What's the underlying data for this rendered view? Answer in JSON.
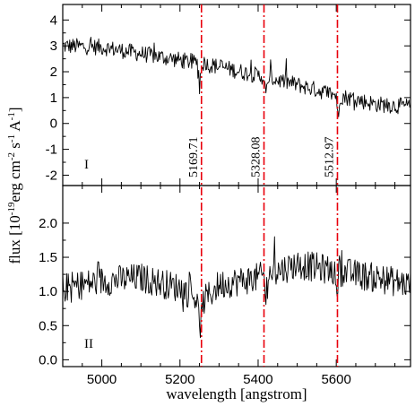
{
  "chart_data": {
    "type": "line",
    "xlabel": "wavelength [angstrom]",
    "ylabel": "flux [10",
    "ylabel_exp1": "-19",
    "ylabel_mid1": "erg cm",
    "ylabel_exp2": "-2",
    "ylabel_mid2": " s",
    "ylabel_exp3": "-1",
    "ylabel_mid3": " A",
    "ylabel_exp4": "-1",
    "ylabel_end": "]",
    "xlim": [
      4900,
      5790
    ],
    "x_ticks": [
      5000,
      5200,
      5400,
      5600
    ],
    "x_tick_labels": [
      "5000",
      "5200",
      "5400",
      "5600"
    ],
    "reference_lines": [
      {
        "label": "5169.71",
        "x": 5255
      },
      {
        "label": "5328.08",
        "x": 5415
      },
      {
        "label": "5512.97",
        "x": 5603
      }
    ],
    "reference_color": "#e8000b",
    "panels": [
      {
        "label": "I",
        "ylim": [
          -2.4,
          4.6
        ],
        "y_ticks": [
          -2,
          -1,
          0,
          1,
          2,
          3,
          4
        ],
        "y_tick_labels": [
          "-2",
          "-1",
          "0",
          "1",
          "2",
          "3",
          "4"
        ],
        "series": {
          "x_start": 4900,
          "x_end": 5790,
          "step": 2,
          "trend": [
            [
              4900,
              3.0
            ],
            [
              5000,
              2.95
            ],
            [
              5100,
              2.7
            ],
            [
              5200,
              2.45
            ],
            [
              5300,
              2.2
            ],
            [
              5400,
              1.85
            ],
            [
              5500,
              1.5
            ],
            [
              5600,
              1.1
            ],
            [
              5700,
              0.75
            ],
            [
              5790,
              0.65
            ]
          ],
          "noise": 0.32,
          "dips": [
            [
              5250,
              1.0,
              6
            ],
            [
              5420,
              0.8,
              5
            ],
            [
              5605,
              1.2,
              5
            ]
          ]
        }
      },
      {
        "label": "II",
        "ylim": [
          -0.1,
          2.55
        ],
        "y_ticks": [
          0.0,
          0.5,
          1.0,
          1.5,
          2.0
        ],
        "y_tick_labels": [
          "0.0",
          "0.5",
          "1.0",
          "1.5",
          "2.0"
        ],
        "series": {
          "x_start": 4900,
          "x_end": 5790,
          "step": 2,
          "trend": [
            [
              4900,
              1.05
            ],
            [
              5000,
              1.15
            ],
            [
              5100,
              1.2
            ],
            [
              5200,
              1.05
            ],
            [
              5260,
              0.85
            ],
            [
              5300,
              1.1
            ],
            [
              5400,
              1.2
            ],
            [
              5500,
              1.4
            ],
            [
              5600,
              1.3
            ],
            [
              5700,
              1.2
            ],
            [
              5790,
              1.1
            ]
          ],
          "noise": 0.22,
          "dips": [
            [
              5250,
              0.45,
              6
            ],
            [
              5420,
              0.35,
              5
            ],
            [
              5600,
              0.55,
              5
            ]
          ]
        }
      }
    ]
  }
}
